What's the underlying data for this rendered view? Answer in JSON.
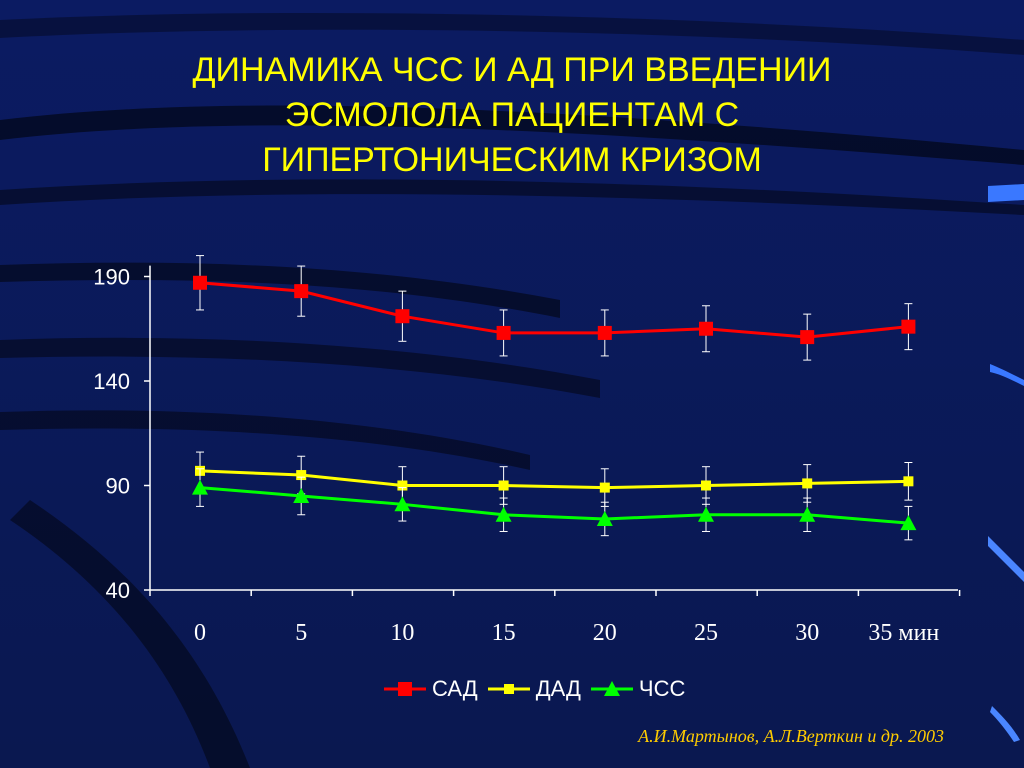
{
  "slide": {
    "title_lines": [
      "ДИНАМИКА ЧСС И АД ПРИ ВВЕДЕНИИ",
      "ЭСМОЛОЛА ПАЦИЕНТАМ С",
      "ГИПЕРТОНИЧЕСКИМ КРИЗОМ"
    ],
    "source": "А.И.Мартынов, А.Л.Верткин и др. 2003",
    "colors": {
      "background": "#0a1a5c",
      "title": "#ffff00",
      "source": "#ffcc00"
    }
  },
  "chart_data": {
    "type": "line",
    "x": [
      0,
      5,
      10,
      15,
      20,
      25,
      30,
      35
    ],
    "x_tick_labels": [
      "0",
      "5",
      "10",
      "15",
      "20",
      "25",
      "30",
      "35 мин"
    ],
    "y_ticks": [
      40,
      90,
      140,
      190
    ],
    "ylim": [
      40,
      200
    ],
    "grid": false,
    "legend_position": "bottom",
    "series": [
      {
        "name": "САД",
        "color": "#ff0000",
        "marker": "square",
        "values": [
          187,
          183,
          171,
          163,
          163,
          165,
          161,
          166
        ],
        "errors": [
          13,
          12,
          12,
          11,
          11,
          11,
          11,
          11
        ]
      },
      {
        "name": "ДАД",
        "color": "#ffff00",
        "marker": "square",
        "values": [
          97,
          95,
          90,
          90,
          89,
          90,
          91,
          92
        ],
        "errors": [
          9,
          9,
          9,
          9,
          9,
          9,
          9,
          9
        ]
      },
      {
        "name": "ЧСС",
        "color": "#00ff00",
        "marker": "triangle",
        "values": [
          89,
          85,
          81,
          76,
          74,
          76,
          76,
          72
        ],
        "errors": [
          9,
          9,
          8,
          8,
          8,
          8,
          8,
          8
        ]
      }
    ]
  }
}
